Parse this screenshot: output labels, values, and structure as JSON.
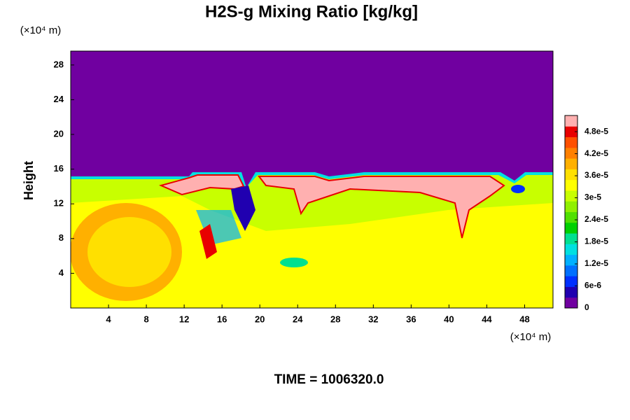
{
  "chart_data": {
    "type": "contour",
    "title": "H2S-g Mixing Ratio [kg/kg]",
    "y_label": "Height",
    "y_unit": "(×10⁴ m)",
    "x_unit": "(×10⁴ m)",
    "time_label": "TIME = 1006320.0",
    "xlim": [
      0,
      51
    ],
    "xticks": [
      4,
      8,
      12,
      16,
      20,
      24,
      28,
      32,
      36,
      40,
      44,
      48
    ],
    "ylim": [
      0,
      29.6
    ],
    "yticks": [
      4,
      8,
      12,
      16,
      20,
      24,
      28
    ],
    "colorbar": {
      "lim": [
        0,
        5.24e-05
      ],
      "ticks": [
        0,
        {
          "value": 6e-06,
          "label": "6e-6"
        },
        {
          "value": 1.2e-05,
          "label": "1.2e-5"
        },
        {
          "value": 1.8e-05,
          "label": "1.8e-5"
        },
        {
          "value": 2.4e-05,
          "label": "2.4e-5"
        },
        {
          "value": 3e-05,
          "label": "3e-5"
        },
        {
          "value": 3.6e-05,
          "label": "3.6e-5"
        },
        {
          "value": 4.2e-05,
          "label": "4.2e-5"
        },
        {
          "value": 4.8e-05,
          "label": "4.8e-5"
        }
      ],
      "colors": [
        "#7000a0",
        "#2000b0",
        "#0030ff",
        "#0070ff",
        "#00b0ff",
        "#00e0e0",
        "#00e090",
        "#00d000",
        "#50e000",
        "#90f000",
        "#c8ff00",
        "#ffff00",
        "#ffe000",
        "#ffb000",
        "#ff8000",
        "#ff5000",
        "#e80000",
        "#ffb0b0"
      ]
    }
  }
}
